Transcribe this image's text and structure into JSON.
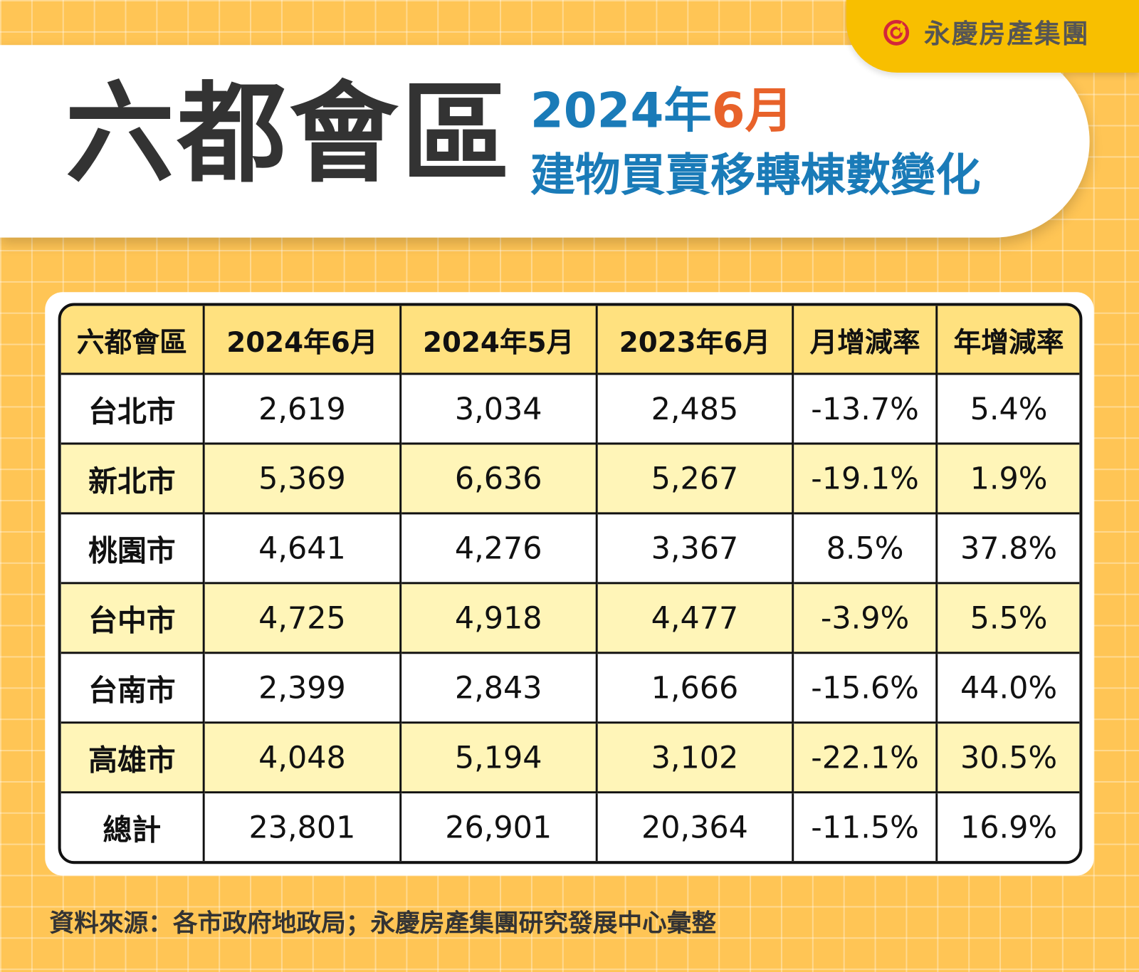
{
  "brand": {
    "name": "永慶房產集團",
    "logo_icon": "circular-arrow-logo-icon",
    "colors": {
      "logo_red": "#D3263A",
      "tab": "#F8BF00"
    }
  },
  "header": {
    "title": "六都會區",
    "subtitle_year": "2024年",
    "subtitle_month": "6月",
    "subtitle_line2": "建物買賣移轉棟數變化"
  },
  "colors": {
    "background": "#FFC555",
    "header_row": "#FFE17F",
    "alt_row": "#FFF5B8",
    "subtitle": "#1A7BB8",
    "highlight": "#E8622A"
  },
  "chart_data": {
    "type": "table",
    "columns": [
      "六都會區",
      "2024年6月",
      "2024年5月",
      "2023年6月",
      "月增減率",
      "年增減率"
    ],
    "rows": [
      [
        "台北市",
        "2,619",
        "3,034",
        "2,485",
        "-13.7%",
        "5.4%"
      ],
      [
        "新北市",
        "5,369",
        "6,636",
        "5,267",
        "-19.1%",
        "1.9%"
      ],
      [
        "桃園市",
        "4,641",
        "4,276",
        "3,367",
        "8.5%",
        "37.8%"
      ],
      [
        "台中市",
        "4,725",
        "4,918",
        "4,477",
        "-3.9%",
        "5.5%"
      ],
      [
        "台南市",
        "2,399",
        "2,843",
        "1,666",
        "-15.6%",
        "44.0%"
      ],
      [
        "高雄市",
        "4,048",
        "5,194",
        "3,102",
        "-22.1%",
        "30.5%"
      ],
      [
        "總計",
        "23,801",
        "26,901",
        "20,364",
        "-11.5%",
        "16.9%"
      ]
    ]
  },
  "footer": {
    "source": "資料來源：各市政府地政局；永慶房產集團研究發展中心彙整"
  }
}
